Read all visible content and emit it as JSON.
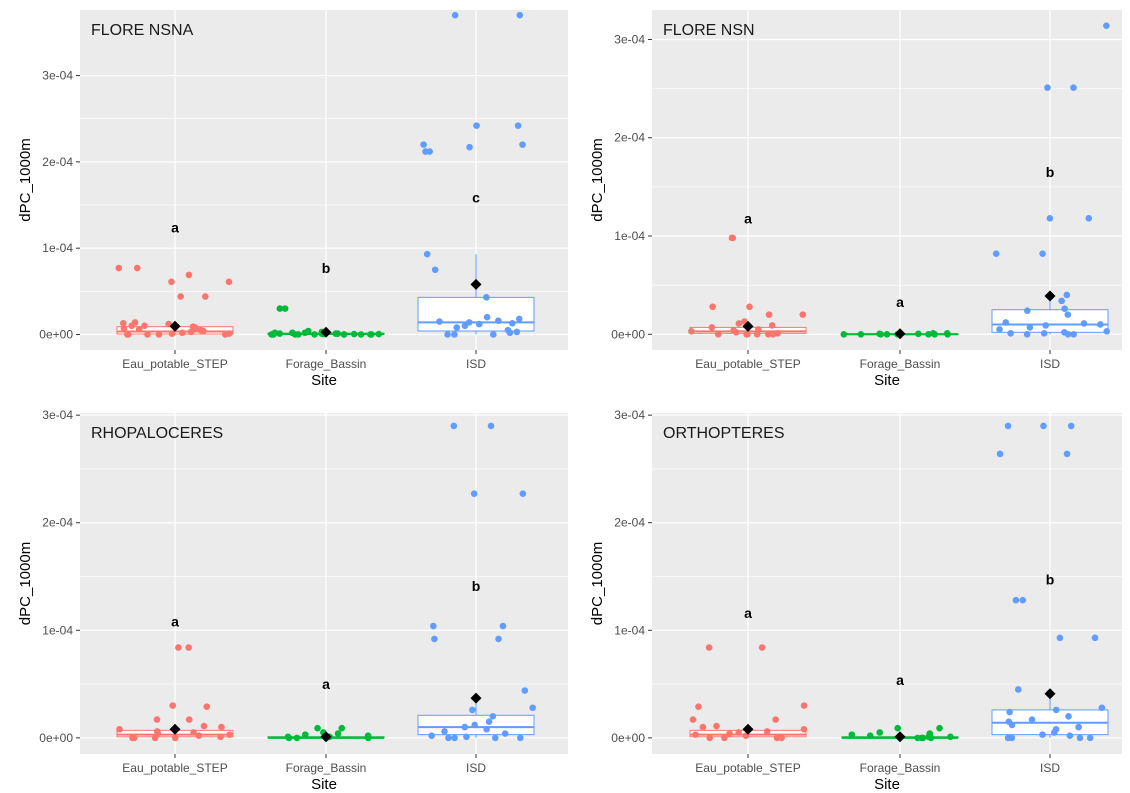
{
  "colors": {
    "Eau_potable_STEP": "#F8766D",
    "Forage_Bassin": "#00BA38",
    "ISD": "#619CFF",
    "mean_marker": "#000000",
    "panel_background": "#EBEBEB",
    "grid": "#FFFFFF"
  },
  "chart_data": [
    {
      "type": "boxplot",
      "title": "FLORE NSNA",
      "xlabel": "Site",
      "ylabel": "dPC_1000m",
      "categories": [
        "Eau_potable_STEP",
        "Forage_Bassin",
        "ISD"
      ],
      "ylim": [
        -1.8e-05,
        0.000376
      ],
      "yticks": [
        0,
        0.0001,
        0.0002,
        0.0003
      ],
      "ytick_labels": [
        "0e+00",
        "1e-04",
        "2e-04",
        "3e-04"
      ],
      "grid": true,
      "letters": [
        "a",
        "b",
        "c"
      ],
      "letter_y": [
        0.000124,
        7.7e-05,
        0.000159
      ],
      "boxes": [
        {
          "q1": 5e-07,
          "median": 3.5e-06,
          "q3": 9e-06,
          "whisker_low": 0,
          "whisker_high": 1.4e-05,
          "mean": 9.5e-06
        },
        {
          "q1": 0,
          "median": 5e-07,
          "q3": 1.5e-06,
          "whisker_low": 0,
          "whisker_high": 3e-06,
          "mean": 2.5e-06
        },
        {
          "q1": 4e-06,
          "median": 1.4e-05,
          "q3": 4.3e-05,
          "whisker_low": 0,
          "whisker_high": 9.3e-05,
          "mean": 5.8e-05
        }
      ],
      "points": [
        [
          7.7e-05,
          7.7e-05,
          6.9e-05,
          6.1e-05,
          6.1e-05,
          4.4e-05,
          4.4e-05,
          1.4e-05,
          1.3e-05,
          1.2e-05,
          1e-05,
          1e-05,
          9e-06,
          8e-06,
          7e-06,
          6e-06,
          5e-06,
          4e-06,
          3e-06,
          2e-06,
          1e-06,
          1e-06,
          0,
          0,
          0,
          0,
          0
        ],
        [
          3e-05,
          3e-05,
          4e-06,
          3e-06,
          2e-06,
          2e-06,
          2e-06,
          1e-06,
          1e-06,
          1e-06,
          1e-06,
          5e-07,
          5e-07,
          5e-07,
          0,
          0,
          0,
          0,
          0,
          0,
          0,
          0,
          0,
          0
        ],
        [
          0.00037,
          0.00037,
          0.000242,
          0.000242,
          0.00022,
          0.00022,
          0.000217,
          0.000212,
          0.000212,
          9.3e-05,
          7.5e-05,
          4.3e-05,
          2e-05,
          1.8e-05,
          1.6e-05,
          1.5e-05,
          1.4e-05,
          1.3e-05,
          1.2e-05,
          1e-05,
          8e-06,
          5e-06,
          3e-06,
          2e-06,
          0,
          0,
          0
        ]
      ]
    },
    {
      "type": "boxplot",
      "title": "FLORE NSN",
      "xlabel": "Site",
      "ylabel": "dPC_1000m",
      "categories": [
        "Eau_potable_STEP",
        "Forage_Bassin",
        "ISD"
      ],
      "ylim": [
        -1.6e-05,
        0.00033
      ],
      "yticks": [
        0,
        0.0001,
        0.0002,
        0.0003
      ],
      "ytick_labels": [
        "0e+00",
        "1e-04",
        "2e-04",
        "3e-04"
      ],
      "grid": true,
      "letters": [
        "a",
        "a",
        "b"
      ],
      "letter_y": [
        0.000118,
        3.3e-05,
        0.000165
      ],
      "boxes": [
        {
          "q1": 1e-06,
          "median": 3e-06,
          "q3": 7e-06,
          "whisker_low": 0,
          "whisker_high": 1.3e-05,
          "mean": 8e-06
        },
        {
          "q1": 0,
          "median": 0,
          "q3": 5e-07,
          "whisker_low": 0,
          "whisker_high": 1e-06,
          "mean": 5e-07
        },
        {
          "q1": 2e-06,
          "median": 1e-05,
          "q3": 2.5e-05,
          "whisker_low": 0,
          "whisker_high": 4e-05,
          "mean": 3.9e-05
        }
      ],
      "points": [
        [
          9.8e-05,
          9.8e-05,
          2.8e-05,
          2.8e-05,
          2e-05,
          2e-05,
          1.3e-05,
          1.1e-05,
          9e-06,
          7e-06,
          5e-06,
          4e-06,
          3e-06,
          2e-06,
          1e-06,
          0,
          0,
          0,
          0,
          0,
          0
        ],
        [
          1e-06,
          1e-06,
          5e-07,
          5e-07,
          0,
          0,
          0,
          0,
          0,
          0,
          0,
          0
        ],
        [
          0.000314,
          0.000251,
          0.000251,
          0.000118,
          0.000118,
          8.2e-05,
          8.2e-05,
          4e-05,
          3.4e-05,
          2.6e-05,
          2.4e-05,
          2e-05,
          1.2e-05,
          1.1e-05,
          1e-05,
          9e-06,
          7e-06,
          5e-06,
          3e-06,
          2e-06,
          1e-06,
          1e-06,
          0,
          0,
          0
        ]
      ]
    },
    {
      "type": "boxplot",
      "title": "RHOPALOCERES",
      "xlabel": "Site",
      "ylabel": "dPC_1000m",
      "categories": [
        "Eau_potable_STEP",
        "Forage_Bassin",
        "ISD"
      ],
      "ylim": [
        -1.5e-05,
        0.000302
      ],
      "yticks": [
        0,
        0.0001,
        0.0002,
        0.0003
      ],
      "ytick_labels": [
        "0e+00",
        "1e-04",
        "2e-04",
        "3e-04"
      ],
      "grid": true,
      "letters": [
        "a",
        "a",
        "b"
      ],
      "letter_y": [
        0.000108,
        5e-05,
        0.000141
      ],
      "boxes": [
        {
          "q1": 1e-06,
          "median": 3e-06,
          "q3": 7e-06,
          "whisker_low": 0,
          "whisker_high": 1.2e-05,
          "mean": 8e-06
        },
        {
          "q1": 0,
          "median": 0,
          "q3": 1e-06,
          "whisker_low": 0,
          "whisker_high": 2e-06,
          "mean": 1e-06
        },
        {
          "q1": 3e-06,
          "median": 1e-05,
          "q3": 2.1e-05,
          "whisker_low": 0,
          "whisker_high": 4e-05,
          "mean": 3.7e-05
        }
      ],
      "points": [
        [
          8.4e-05,
          8.4e-05,
          3e-05,
          2.9e-05,
          1.7e-05,
          1.7e-05,
          1.1e-05,
          1e-05,
          8e-06,
          6e-06,
          5e-06,
          4e-06,
          3e-06,
          2e-06,
          1e-06,
          0,
          0,
          0,
          0
        ],
        [
          9e-06,
          9e-06,
          5e-06,
          4e-06,
          3e-06,
          2e-06,
          1e-06,
          1e-06,
          0,
          0,
          0,
          0
        ],
        [
          0.00029,
          0.00029,
          0.000227,
          0.000227,
          0.000104,
          0.000104,
          9.2e-05,
          9.2e-05,
          4.4e-05,
          2.8e-05,
          2.6e-05,
          2e-05,
          1.5e-05,
          1.2e-05,
          1e-05,
          8e-06,
          6e-06,
          4e-06,
          2e-06,
          1e-06,
          0,
          0,
          0,
          0
        ]
      ]
    },
    {
      "type": "boxplot",
      "title": "ORTHOPTERES",
      "xlabel": "Site",
      "ylabel": "dPC_1000m",
      "categories": [
        "Eau_potable_STEP",
        "Forage_Bassin",
        "ISD"
      ],
      "ylim": [
        -1.5e-05,
        0.000302
      ],
      "yticks": [
        0,
        0.0001,
        0.0002,
        0.0003
      ],
      "ytick_labels": [
        "0e+00",
        "1e-04",
        "2e-04",
        "3e-04"
      ],
      "grid": true,
      "letters": [
        "a",
        "a",
        "b"
      ],
      "letter_y": [
        0.000116,
        5.4e-05,
        0.000147
      ],
      "boxes": [
        {
          "q1": 1e-06,
          "median": 3e-06,
          "q3": 7e-06,
          "whisker_low": 0,
          "whisker_high": 1.2e-05,
          "mean": 8e-06
        },
        {
          "q1": 0,
          "median": 0,
          "q3": 1e-06,
          "whisker_low": 0,
          "whisker_high": 2e-06,
          "mean": 1e-06
        },
        {
          "q1": 3e-06,
          "median": 1.4e-05,
          "q3": 2.6e-05,
          "whisker_low": 0,
          "whisker_high": 4.4e-05,
          "mean": 4.1e-05
        }
      ],
      "points": [
        [
          8.4e-05,
          8.4e-05,
          3e-05,
          2.9e-05,
          1.7e-05,
          1.7e-05,
          1.1e-05,
          1e-05,
          8e-06,
          6e-06,
          5e-06,
          4e-06,
          3e-06,
          2e-06,
          1e-06,
          0,
          0,
          0,
          0
        ],
        [
          9e-06,
          9e-06,
          5e-06,
          4e-06,
          3e-06,
          2e-06,
          1e-06,
          1e-06,
          0,
          0,
          0,
          0
        ],
        [
          0.00029,
          0.00029,
          0.00029,
          0.000264,
          0.000264,
          0.000128,
          0.000128,
          9.3e-05,
          9.3e-05,
          4.5e-05,
          2.8e-05,
          2.6e-05,
          2.4e-05,
          2e-05,
          1.7e-05,
          1.5e-05,
          1.2e-05,
          1e-05,
          8e-06,
          5e-06,
          3e-06,
          2e-06,
          0,
          0,
          0,
          0
        ]
      ]
    }
  ]
}
